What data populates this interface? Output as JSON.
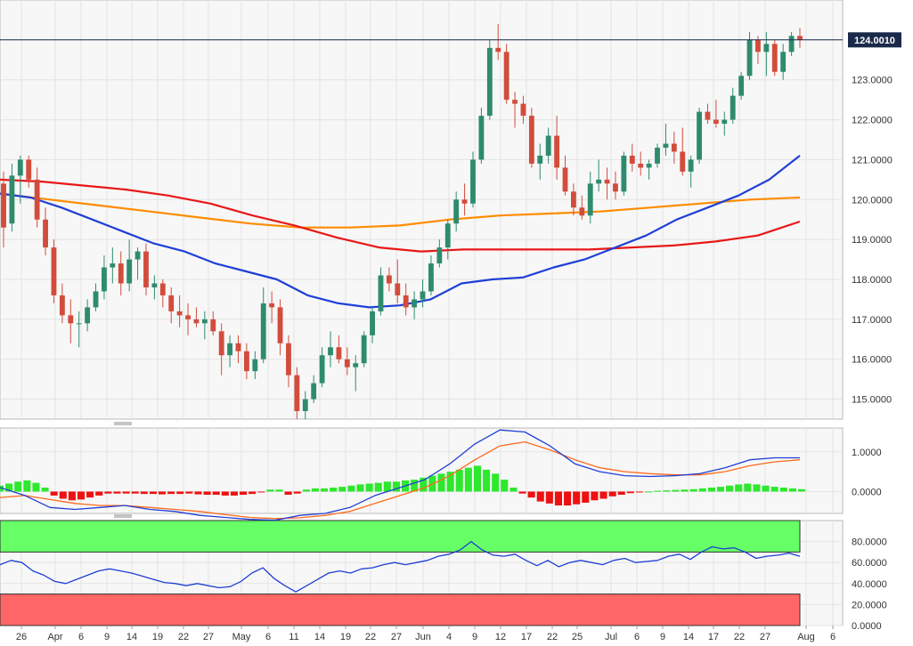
{
  "chart_data": [
    {
      "type": "candlestick",
      "title": "",
      "x_tick_labels": [
        "26",
        "Apr",
        "6",
        "9",
        "14",
        "19",
        "22",
        "27",
        "May",
        "6",
        "11",
        "14",
        "19",
        "22",
        "27",
        "Jun",
        "4",
        "9",
        "12",
        "17",
        "22",
        "25",
        "Jul",
        "6",
        "9",
        "14",
        "17",
        "22",
        "27",
        "Aug",
        "6"
      ],
      "y_ticks": [
        115.0,
        116.0,
        117.0,
        118.0,
        119.0,
        120.0,
        121.0,
        122.0,
        123.0,
        124.0
      ],
      "y_tick_labels": [
        "115.0000",
        "116.0000",
        "117.0000",
        "118.0000",
        "119.0000",
        "120.0000",
        "121.0000",
        "122.0000",
        "123.0000",
        "124.0000"
      ],
      "ylim": [
        114.5,
        125.0
      ],
      "last_price": 124.001,
      "last_price_label": "124.0010",
      "colors": {
        "up": "#2e8b6e",
        "down": "#d24c3c",
        "ma_fast": "#1f3fd6",
        "ma_mid": "#e81818",
        "ma_slow": "#ff8c00"
      },
      "candles": [
        [
          120.4,
          120.7,
          118.8,
          119.3
        ],
        [
          119.4,
          120.9,
          119.2,
          120.6
        ],
        [
          120.6,
          121.1,
          119.9,
          121.0
        ],
        [
          121.0,
          121.1,
          120.3,
          120.5
        ],
        [
          120.5,
          120.8,
          119.3,
          119.5
        ],
        [
          119.5,
          119.8,
          118.6,
          118.8
        ],
        [
          118.8,
          119.0,
          117.4,
          117.6
        ],
        [
          117.6,
          117.9,
          116.9,
          117.1
        ],
        [
          117.1,
          117.5,
          116.4,
          116.9
        ],
        [
          116.9,
          117.2,
          116.3,
          116.9
        ],
        [
          116.9,
          117.5,
          116.7,
          117.3
        ],
        [
          117.3,
          117.9,
          117.2,
          117.7
        ],
        [
          117.7,
          118.6,
          117.5,
          118.3
        ],
        [
          118.3,
          118.8,
          117.9,
          118.4
        ],
        [
          118.4,
          118.7,
          117.6,
          117.9
        ],
        [
          117.9,
          119.0,
          117.7,
          118.5
        ],
        [
          118.5,
          118.8,
          118.0,
          118.7
        ],
        [
          118.7,
          118.9,
          117.6,
          117.8
        ],
        [
          117.8,
          118.1,
          117.5,
          117.9
        ],
        [
          117.9,
          118.0,
          117.3,
          117.6
        ],
        [
          117.6,
          117.8,
          116.9,
          117.2
        ],
        [
          117.2,
          117.6,
          116.8,
          117.1
        ],
        [
          117.1,
          117.4,
          116.6,
          117.0
        ],
        [
          117.0,
          117.3,
          116.8,
          116.9
        ],
        [
          116.9,
          117.2,
          116.5,
          117.0
        ],
        [
          117.0,
          117.2,
          116.6,
          116.7
        ],
        [
          116.7,
          116.9,
          115.6,
          116.1
        ],
        [
          116.1,
          116.6,
          115.8,
          116.4
        ],
        [
          116.4,
          116.6,
          115.9,
          116.2
        ],
        [
          116.2,
          116.4,
          115.5,
          115.7
        ],
        [
          115.7,
          116.2,
          115.5,
          116.0
        ],
        [
          116.0,
          117.8,
          115.9,
          117.4
        ],
        [
          117.4,
          117.7,
          116.9,
          117.3
        ],
        [
          117.3,
          117.5,
          116.1,
          116.4
        ],
        [
          116.4,
          116.6,
          115.3,
          115.6
        ],
        [
          115.6,
          115.8,
          114.5,
          114.7
        ],
        [
          114.7,
          115.2,
          114.5,
          115.0
        ],
        [
          115.0,
          115.6,
          114.9,
          115.4
        ],
        [
          115.4,
          116.3,
          115.3,
          116.1
        ],
        [
          116.1,
          116.7,
          115.8,
          116.3
        ],
        [
          116.3,
          116.6,
          115.9,
          116.0
        ],
        [
          116.0,
          116.3,
          115.6,
          115.8
        ],
        [
          115.8,
          116.1,
          115.2,
          115.9
        ],
        [
          115.9,
          116.7,
          115.8,
          116.6
        ],
        [
          116.6,
          117.3,
          116.4,
          117.2
        ],
        [
          117.2,
          118.3,
          117.1,
          118.1
        ],
        [
          118.1,
          118.3,
          117.7,
          117.9
        ],
        [
          117.9,
          118.5,
          117.4,
          117.6
        ],
        [
          117.6,
          117.9,
          117.1,
          117.3
        ],
        [
          117.3,
          117.7,
          117.0,
          117.5
        ],
        [
          117.5,
          118.0,
          117.3,
          117.7
        ],
        [
          117.7,
          118.6,
          117.6,
          118.4
        ],
        [
          118.4,
          119.0,
          118.3,
          118.8
        ],
        [
          118.8,
          119.5,
          118.5,
          119.4
        ],
        [
          119.4,
          120.2,
          119.2,
          120.0
        ],
        [
          120.0,
          120.4,
          119.6,
          119.9
        ],
        [
          119.9,
          121.2,
          119.8,
          121.0
        ],
        [
          121.0,
          122.3,
          120.9,
          122.1
        ],
        [
          122.1,
          124.0,
          122.0,
          123.8
        ],
        [
          123.8,
          124.4,
          123.5,
          123.7
        ],
        [
          123.7,
          123.9,
          122.4,
          122.5
        ],
        [
          122.5,
          122.7,
          121.8,
          122.4
        ],
        [
          122.4,
          122.6,
          121.9,
          122.1
        ],
        [
          122.1,
          122.3,
          120.8,
          120.9
        ],
        [
          120.9,
          121.4,
          120.5,
          121.1
        ],
        [
          121.1,
          121.8,
          120.9,
          121.6
        ],
        [
          121.6,
          122.1,
          120.5,
          120.8
        ],
        [
          120.8,
          121.1,
          120.1,
          120.2
        ],
        [
          120.2,
          120.4,
          119.6,
          119.8
        ],
        [
          119.8,
          120.1,
          119.5,
          119.6
        ],
        [
          119.6,
          120.7,
          119.4,
          120.4
        ],
        [
          120.4,
          121.0,
          120.2,
          120.5
        ],
        [
          120.5,
          120.8,
          120.0,
          120.4
        ],
        [
          120.4,
          120.7,
          120.0,
          120.2
        ],
        [
          120.2,
          121.2,
          120.1,
          121.1
        ],
        [
          121.1,
          121.4,
          120.7,
          120.9
        ],
        [
          120.9,
          121.2,
          120.6,
          120.8
        ],
        [
          120.8,
          121.0,
          120.5,
          120.9
        ],
        [
          120.9,
          121.4,
          120.8,
          121.3
        ],
        [
          121.3,
          121.9,
          121.1,
          121.4
        ],
        [
          121.4,
          121.7,
          120.9,
          121.2
        ],
        [
          121.2,
          121.8,
          120.6,
          120.7
        ],
        [
          120.7,
          121.1,
          120.3,
          121.0
        ],
        [
          121.0,
          122.3,
          120.9,
          122.2
        ],
        [
          122.2,
          122.4,
          121.9,
          122.0
        ],
        [
          122.0,
          122.5,
          121.8,
          121.9
        ],
        [
          121.9,
          122.2,
          121.6,
          122.0
        ],
        [
          122.0,
          122.8,
          121.9,
          122.6
        ],
        [
          122.6,
          123.2,
          122.5,
          123.1
        ],
        [
          123.1,
          124.2,
          123.0,
          124.0
        ],
        [
          124.0,
          124.1,
          123.4,
          123.7
        ],
        [
          123.7,
          124.2,
          123.1,
          123.9
        ],
        [
          123.9,
          124.0,
          123.1,
          123.2
        ],
        [
          123.2,
          123.9,
          123.0,
          123.7
        ],
        [
          123.7,
          124.2,
          123.6,
          124.1
        ],
        [
          124.1,
          124.3,
          123.8,
          124.0
        ]
      ],
      "ma_fast": [
        120.15,
        120.05,
        119.8,
        119.5,
        119.2,
        118.9,
        118.7,
        118.4,
        118.2,
        118.0,
        117.6,
        117.4,
        117.3,
        117.35,
        117.5,
        117.9,
        118.0,
        118.05,
        118.3,
        118.5,
        118.8,
        119.1,
        119.5,
        119.8,
        120.1,
        120.5,
        121.1
      ],
      "ma_mid": [
        120.5,
        120.45,
        120.35,
        120.25,
        120.1,
        119.9,
        119.6,
        119.35,
        119.05,
        118.8,
        118.7,
        118.75,
        118.75,
        118.75,
        118.75,
        118.8,
        118.85,
        118.95,
        119.1,
        119.45
      ],
      "ma_slow": [
        120.15,
        120.0,
        119.85,
        119.7,
        119.55,
        119.4,
        119.3,
        119.3,
        119.35,
        119.5,
        119.6,
        119.65,
        119.7,
        119.8,
        119.9,
        120.0,
        120.05
      ]
    },
    {
      "type": "macd",
      "y_ticks": [
        0.0,
        1.0
      ],
      "y_tick_labels": [
        "0.0000",
        "1.0000"
      ],
      "ylim": [
        -0.55,
        1.6
      ],
      "colors": {
        "macd": "#1f3fd6",
        "signal": "#ff6a1a",
        "hist_pos": "#2ee82e",
        "hist_neg": "#ee1111"
      },
      "macd_line": [
        0.1,
        -0.1,
        -0.4,
        -0.45,
        -0.4,
        -0.35,
        -0.45,
        -0.5,
        -0.6,
        -0.65,
        -0.7,
        -0.72,
        -0.6,
        -0.55,
        -0.4,
        -0.1,
        0.1,
        0.3,
        0.7,
        1.2,
        1.55,
        1.5,
        1.15,
        0.7,
        0.5,
        0.4,
        0.38,
        0.4,
        0.45,
        0.6,
        0.8,
        0.85,
        0.85
      ],
      "signal_line": [
        -0.15,
        -0.1,
        -0.2,
        -0.3,
        -0.35,
        -0.35,
        -0.4,
        -0.45,
        -0.5,
        -0.58,
        -0.65,
        -0.68,
        -0.66,
        -0.6,
        -0.5,
        -0.3,
        -0.1,
        0.1,
        0.4,
        0.8,
        1.15,
        1.25,
        1.05,
        0.8,
        0.6,
        0.5,
        0.45,
        0.42,
        0.42,
        0.5,
        0.65,
        0.75,
        0.8
      ],
      "histogram": [
        0.15,
        0.2,
        0.25,
        0.28,
        0.22,
        0.1,
        -0.1,
        -0.18,
        -0.22,
        -0.2,
        -0.15,
        -0.1,
        -0.05,
        -0.05,
        -0.05,
        -0.05,
        -0.06,
        -0.06,
        -0.07,
        -0.06,
        -0.06,
        -0.05,
        -0.07,
        -0.08,
        -0.08,
        -0.1,
        -0.1,
        -0.08,
        -0.06,
        -0.02,
        0.05,
        0.05,
        -0.08,
        -0.05,
        0.05,
        0.08,
        0.08,
        0.1,
        0.12,
        0.15,
        0.18,
        0.2,
        0.22,
        0.25,
        0.25,
        0.28,
        0.3,
        0.35,
        0.4,
        0.45,
        0.5,
        0.55,
        0.6,
        0.65,
        0.55,
        0.45,
        0.3,
        0.1,
        -0.05,
        -0.15,
        -0.25,
        -0.3,
        -0.35,
        -0.35,
        -0.32,
        -0.28,
        -0.22,
        -0.18,
        -0.12,
        -0.08,
        -0.04,
        -0.02,
        0.0,
        0.02,
        0.03,
        0.04,
        0.05,
        0.06,
        0.08,
        0.1,
        0.12,
        0.15,
        0.18,
        0.2,
        0.18,
        0.15,
        0.12,
        0.1,
        0.08,
        0.06
      ]
    },
    {
      "type": "rsi",
      "y_ticks": [
        0,
        20,
        40,
        60,
        80
      ],
      "y_tick_labels": [
        "0.0000",
        "20.0000",
        "40.0000",
        "60.0000",
        "80.0000"
      ],
      "ylim": [
        0,
        100
      ],
      "overbought_band": [
        70,
        100
      ],
      "oversold_band": [
        0,
        30
      ],
      "colors": {
        "line": "#1f3fd6",
        "overbought": "#66ff66",
        "oversold": "#ff6666"
      },
      "values": [
        58,
        62,
        60,
        52,
        48,
        42,
        40,
        44,
        48,
        52,
        54,
        52,
        50,
        47,
        44,
        41,
        40,
        38,
        40,
        38,
        36,
        37,
        42,
        50,
        55,
        45,
        38,
        32,
        38,
        44,
        50,
        52,
        50,
        54,
        55,
        58,
        60,
        58,
        60,
        62,
        66,
        68,
        72,
        80,
        72,
        67,
        66,
        68,
        62,
        57,
        62,
        56,
        60,
        62,
        60,
        58,
        62,
        64,
        60,
        61,
        62,
        66,
        68,
        63,
        70,
        75,
        73,
        74,
        70,
        64,
        66,
        67,
        69,
        66
      ]
    }
  ]
}
